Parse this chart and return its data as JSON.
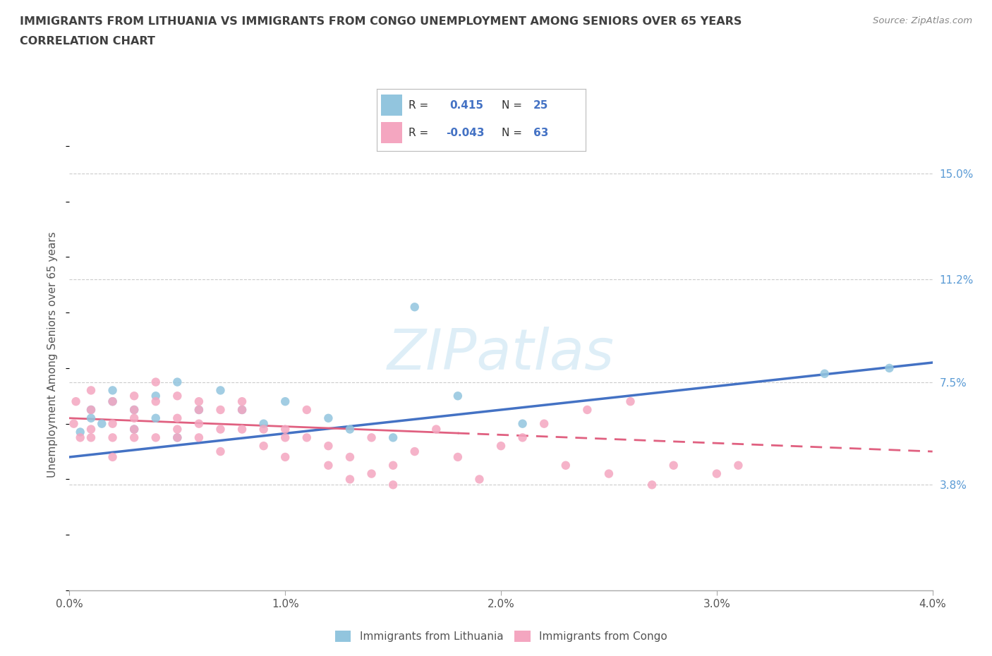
{
  "title_line1": "IMMIGRANTS FROM LITHUANIA VS IMMIGRANTS FROM CONGO UNEMPLOYMENT AMONG SENIORS OVER 65 YEARS",
  "title_line2": "CORRELATION CHART",
  "source_text": "Source: ZipAtlas.com",
  "ylabel": "Unemployment Among Seniors over 65 years",
  "xmin": 0.0,
  "xmax": 0.04,
  "ymin": 0.0,
  "ymax": 0.17,
  "yticks": [
    0.038,
    0.075,
    0.112,
    0.15
  ],
  "ytick_labels": [
    "3.8%",
    "7.5%",
    "11.2%",
    "15.0%"
  ],
  "xticks": [
    0.0,
    0.01,
    0.02,
    0.03,
    0.04
  ],
  "xtick_labels": [
    "0.0%",
    "1.0%",
    "2.0%",
    "3.0%",
    "4.0%"
  ],
  "color_lithuania": "#92C5DE",
  "color_congo": "#F4A6C0",
  "color_line_lithuania": "#4472C4",
  "color_line_congo": "#E06080",
  "watermark_color": "#D8E8F0",
  "lithuania_x": [
    0.0005,
    0.001,
    0.001,
    0.0015,
    0.002,
    0.002,
    0.003,
    0.003,
    0.004,
    0.004,
    0.005,
    0.005,
    0.006,
    0.007,
    0.008,
    0.009,
    0.01,
    0.012,
    0.013,
    0.015,
    0.016,
    0.018,
    0.021,
    0.035,
    0.038
  ],
  "lithuania_y": [
    0.057,
    0.062,
    0.065,
    0.06,
    0.068,
    0.072,
    0.065,
    0.058,
    0.07,
    0.062,
    0.075,
    0.055,
    0.065,
    0.072,
    0.065,
    0.06,
    0.068,
    0.062,
    0.058,
    0.055,
    0.102,
    0.07,
    0.06,
    0.078,
    0.08
  ],
  "congo_x": [
    0.0002,
    0.0003,
    0.0005,
    0.001,
    0.001,
    0.001,
    0.001,
    0.002,
    0.002,
    0.002,
    0.002,
    0.003,
    0.003,
    0.003,
    0.003,
    0.003,
    0.004,
    0.004,
    0.004,
    0.005,
    0.005,
    0.005,
    0.005,
    0.006,
    0.006,
    0.006,
    0.006,
    0.007,
    0.007,
    0.007,
    0.008,
    0.008,
    0.008,
    0.009,
    0.009,
    0.01,
    0.01,
    0.01,
    0.011,
    0.011,
    0.012,
    0.012,
    0.013,
    0.013,
    0.014,
    0.014,
    0.015,
    0.015,
    0.016,
    0.017,
    0.018,
    0.019,
    0.02,
    0.021,
    0.022,
    0.023,
    0.024,
    0.025,
    0.026,
    0.027,
    0.028,
    0.03,
    0.031
  ],
  "congo_y": [
    0.06,
    0.068,
    0.055,
    0.072,
    0.055,
    0.065,
    0.058,
    0.06,
    0.068,
    0.055,
    0.048,
    0.07,
    0.062,
    0.055,
    0.065,
    0.058,
    0.075,
    0.068,
    0.055,
    0.07,
    0.062,
    0.058,
    0.055,
    0.068,
    0.055,
    0.06,
    0.065,
    0.065,
    0.058,
    0.05,
    0.068,
    0.058,
    0.065,
    0.058,
    0.052,
    0.055,
    0.048,
    0.058,
    0.065,
    0.055,
    0.045,
    0.052,
    0.04,
    0.048,
    0.042,
    0.055,
    0.038,
    0.045,
    0.05,
    0.058,
    0.048,
    0.04,
    0.052,
    0.055,
    0.06,
    0.045,
    0.065,
    0.042,
    0.068,
    0.038,
    0.045,
    0.042,
    0.045
  ],
  "lith_line_x0": 0.0,
  "lith_line_y0": 0.048,
  "lith_line_x1": 0.04,
  "lith_line_y1": 0.082,
  "congo_line_x0": 0.0,
  "congo_line_y0": 0.062,
  "congo_line_x1": 0.04,
  "congo_line_y1": 0.05
}
